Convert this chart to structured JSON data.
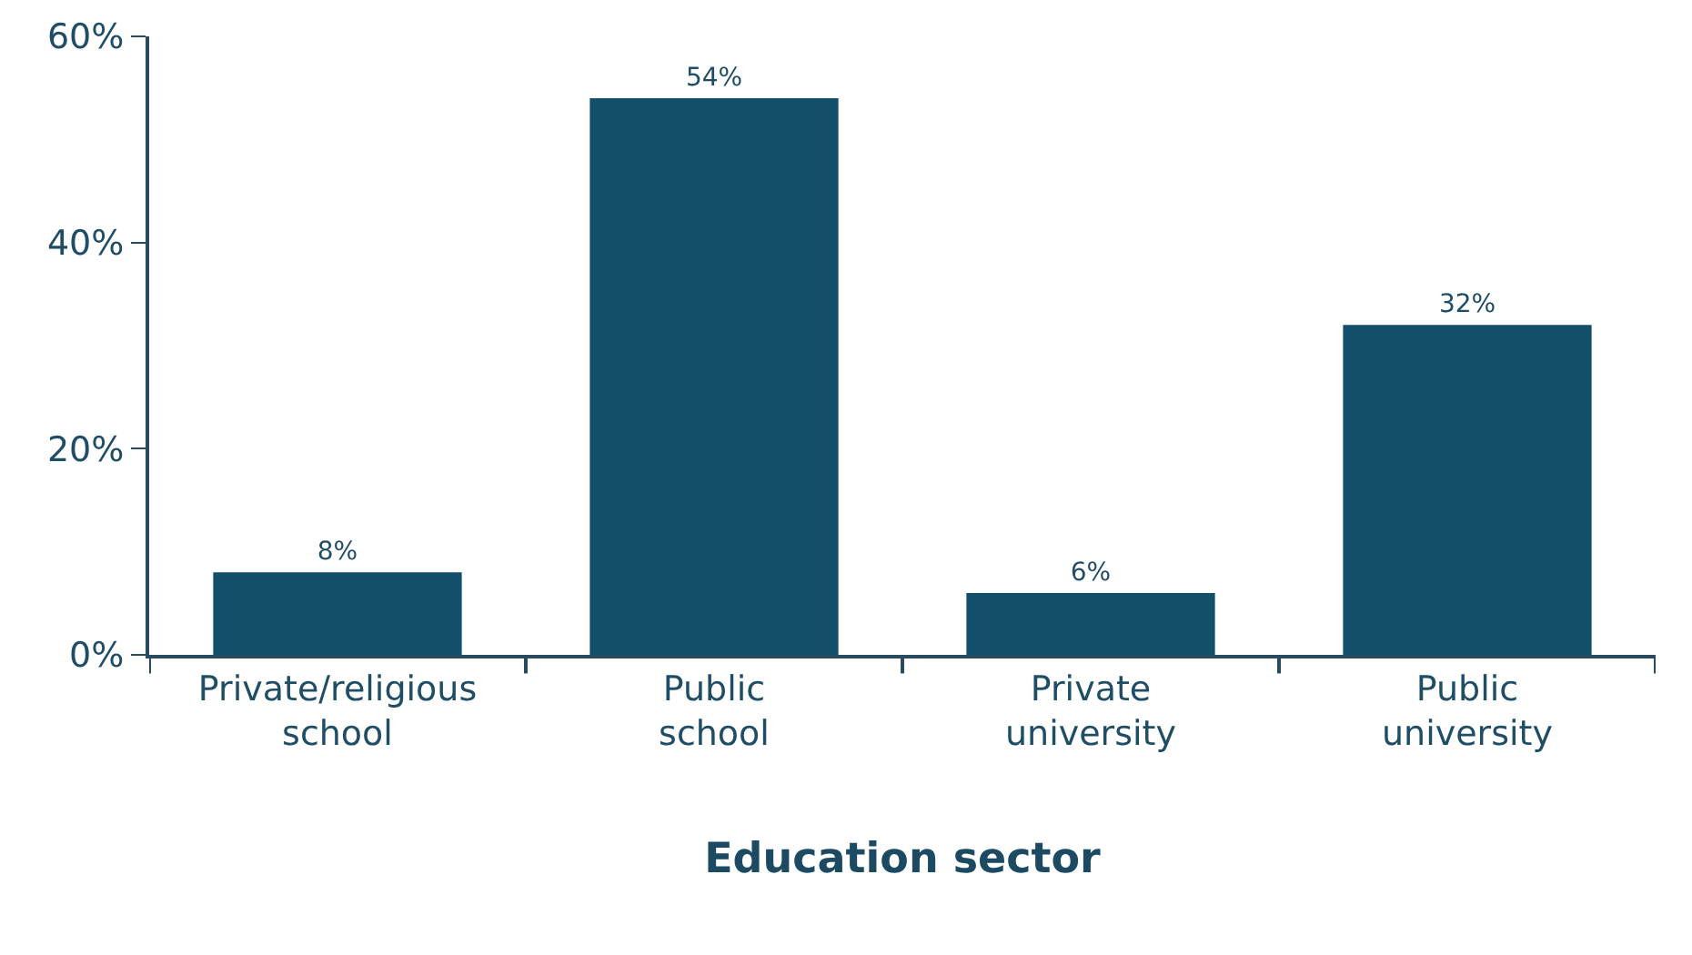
{
  "chart_data": {
    "type": "bar",
    "xlabel": "Education sector",
    "categories": [
      "Private/religious school",
      "Public school",
      "Private university",
      "Public university"
    ],
    "values": [
      8,
      54,
      6,
      32
    ],
    "value_labels": [
      "8%",
      "54%",
      "6%",
      "32%"
    ],
    "color": "#134f6b",
    "ylim": [
      0,
      60
    ],
    "yticks": [
      {
        "value": 0,
        "label": "0%"
      },
      {
        "value": 20,
        "label": "20%"
      },
      {
        "value": 40,
        "label": "40%"
      },
      {
        "value": 60,
        "label": "60%"
      }
    ],
    "grid": false
  }
}
